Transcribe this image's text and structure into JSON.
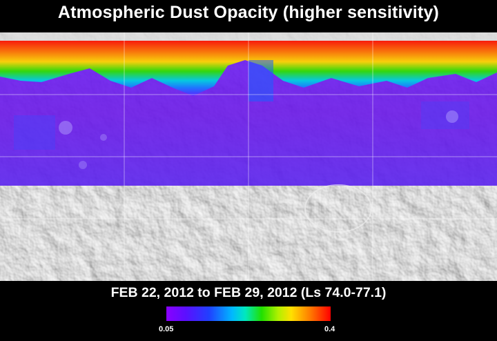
{
  "title": "Atmospheric Dust Opacity (higher sensitivity)",
  "date_range": "FEB 22, 2012 to FEB 29, 2012 (Ls 74.0-77.1)",
  "colorbar": {
    "min_label": "0.05",
    "max_label": "0.4",
    "min_value": 0.05,
    "max_value": 0.4,
    "colors": [
      "#8a00ff",
      "#2040ff",
      "#00b8ff",
      "#20e000",
      "#ffe000",
      "#ff8000",
      "#ff0000"
    ]
  },
  "map": {
    "projection": "simple cylindrical",
    "base_layer": "grayscale shaded-relief terrain",
    "overlay": "gridded dust opacity field",
    "graticule": true
  }
}
